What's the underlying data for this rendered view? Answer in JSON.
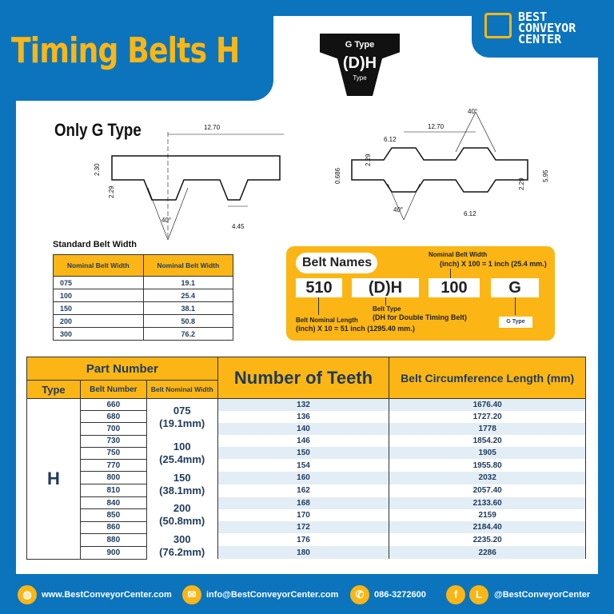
{
  "title": "Timing Belts H",
  "logo": {
    "line1": "BEST",
    "line2": "CONVEYOR",
    "line3": "CENTER"
  },
  "badge": {
    "top": "G Type",
    "mid": "(D)H",
    "bottom": "Type"
  },
  "only_g": "Only G Type",
  "diagram_labels": {
    "left": [
      "12.70",
      "2.30",
      "2.29",
      "40°",
      "4.45"
    ],
    "right": [
      "40°",
      "12.70",
      "6.12",
      "2.29",
      "0.686",
      "5.95",
      "2.29",
      "40°",
      "6.12"
    ]
  },
  "standard_width": {
    "title": "Standard Belt Width",
    "headers": [
      "Nominal Belt Width",
      "Nominal Belt Width"
    ],
    "rows": [
      [
        "075",
        "19.1"
      ],
      [
        "100",
        "25.4"
      ],
      [
        "150",
        "38.1"
      ],
      [
        "200",
        "50.8"
      ],
      [
        "300",
        "76.2"
      ]
    ]
  },
  "belt_names": {
    "title": "Belt Names",
    "codes": [
      "510",
      "(D)H",
      "100",
      "G"
    ],
    "width_label": "Nominal Belt Width",
    "width_formula": "(inch) X 100 = 1 inch (25.4 mm.)",
    "type_label": "Belt Type",
    "type_desc": "(DH for Double Timing Belt)",
    "length_label": "Belt Nominal Length",
    "length_formula": "(inch) X 10 = 51 inch (1295.40 mm.)",
    "g_label": "G Type"
  },
  "table": {
    "part_number": "Part Number",
    "type_h": "Type",
    "belt_number_h": "Belt Number",
    "width_h": "Belt Nominal Width",
    "teeth_h": "Number of Teeth",
    "circ_h": "Belt Circumference Length (mm)",
    "type": "H",
    "widths": [
      [
        "075",
        "(19.1mm)"
      ],
      [
        "100",
        "(25.4mm)"
      ],
      [
        "150",
        "(38.1mm)"
      ],
      [
        "200",
        "(50.8mm)"
      ],
      [
        "300",
        "(76.2mm)"
      ]
    ],
    "rows": [
      [
        "660",
        "132",
        "1676.40"
      ],
      [
        "680",
        "136",
        "1727.20"
      ],
      [
        "700",
        "140",
        "1778"
      ],
      [
        "730",
        "146",
        "1854.20"
      ],
      [
        "750",
        "150",
        "1905"
      ],
      [
        "770",
        "154",
        "1955.80"
      ],
      [
        "800",
        "160",
        "2032"
      ],
      [
        "810",
        "162",
        "2057.40"
      ],
      [
        "840",
        "168",
        "2133.60"
      ],
      [
        "850",
        "170",
        "2159"
      ],
      [
        "860",
        "172",
        "2184.40"
      ],
      [
        "880",
        "176",
        "2235.20"
      ],
      [
        "900",
        "180",
        "2286"
      ]
    ]
  },
  "footer": {
    "web": "www.BestConveyorCenter.com",
    "email": "info@BestConveyorCenter.com",
    "phone": "086-3272600",
    "social": "@BestConveyorCenter"
  },
  "colors": {
    "blue": "#0b74bd",
    "yellow": "#fbb615",
    "navy": "#1f3a5c"
  }
}
